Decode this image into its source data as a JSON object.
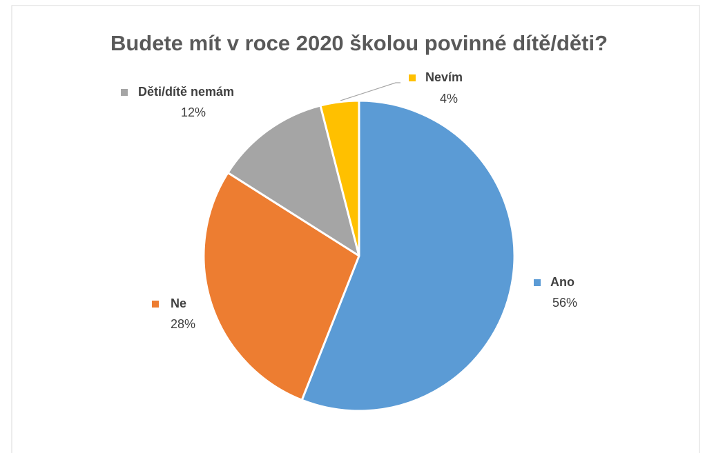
{
  "chart_data": {
    "type": "pie",
    "title": "Budete mít v roce 2020 školou povinné dítě/děti?",
    "categories": [
      "Ano",
      "Ne",
      "Děti/dítě nemám",
      "Nevím"
    ],
    "values": [
      56,
      28,
      12,
      4
    ],
    "value_labels": [
      "56%",
      "28%",
      "12%",
      "4%"
    ],
    "colors": [
      "#5b9bd5",
      "#ed7d31",
      "#a5a5a5",
      "#ffc000"
    ]
  }
}
